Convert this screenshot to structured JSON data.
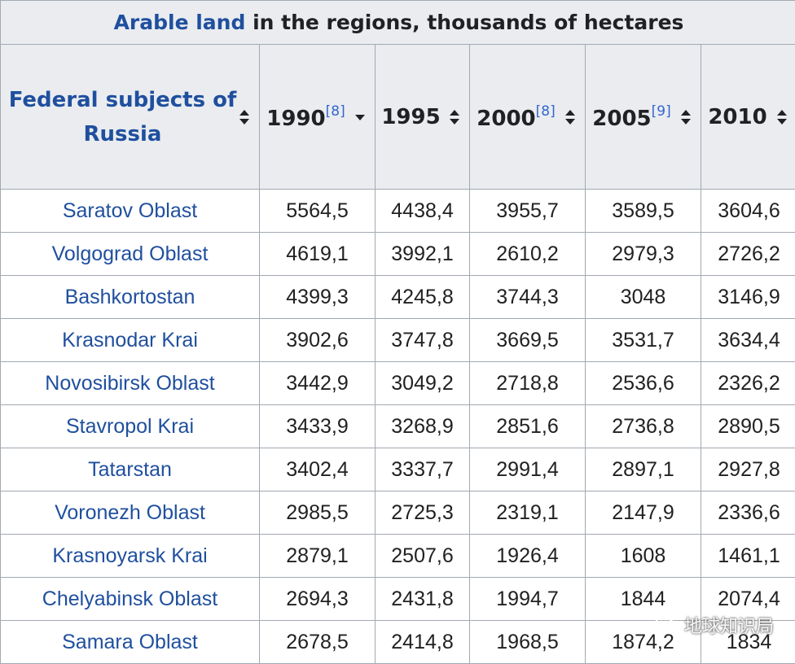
{
  "caption": {
    "link_text": "Arable land",
    "rest_text": " in the regions, thousands of hectares"
  },
  "columns": [
    {
      "label": "Federal subjects of Russia",
      "ref": "",
      "sort": "both"
    },
    {
      "label": "1990",
      "ref": "[8]",
      "sort": "down"
    },
    {
      "label": "1995",
      "ref": "",
      "sort": "both"
    },
    {
      "label": "2000",
      "ref": "[8]",
      "sort": "both"
    },
    {
      "label": "2005",
      "ref": "[9]",
      "sort": "both"
    },
    {
      "label": "2010",
      "ref": "",
      "sort": "both"
    }
  ],
  "rows": [
    {
      "region": "Saratov Oblast",
      "values": [
        "5564,5",
        "4438,4",
        "3955,7",
        "3589,5",
        "3604,6"
      ]
    },
    {
      "region": "Volgograd Oblast",
      "values": [
        "4619,1",
        "3992,1",
        "2610,2",
        "2979,3",
        "2726,2"
      ]
    },
    {
      "region": "Bashkortostan",
      "values": [
        "4399,3",
        "4245,8",
        "3744,3",
        "3048",
        "3146,9"
      ]
    },
    {
      "region": "Krasnodar Krai",
      "values": [
        "3902,6",
        "3747,8",
        "3669,5",
        "3531,7",
        "3634,4"
      ]
    },
    {
      "region": "Novosibirsk Oblast",
      "values": [
        "3442,9",
        "3049,2",
        "2718,8",
        "2536,6",
        "2326,2"
      ]
    },
    {
      "region": "Stavropol Krai",
      "values": [
        "3433,9",
        "3268,9",
        "2851,6",
        "2736,8",
        "2890,5"
      ]
    },
    {
      "region": "Tatarstan",
      "values": [
        "3402,4",
        "3337,7",
        "2991,4",
        "2897,1",
        "2927,8"
      ]
    },
    {
      "region": "Voronezh Oblast",
      "values": [
        "2985,5",
        "2725,3",
        "2319,1",
        "2147,9",
        "2336,6"
      ]
    },
    {
      "region": "Krasnoyarsk Krai",
      "values": [
        "2879,1",
        "2507,6",
        "1926,4",
        "1608",
        "1461,1"
      ]
    },
    {
      "region": "Chelyabinsk Oblast",
      "values": [
        "2694,3",
        "2431,8",
        "1994,7",
        "1844",
        "2074,4"
      ]
    },
    {
      "region": "Samara Oblast",
      "values": [
        "2678,5",
        "2414,8",
        "1968,5",
        "1874,2",
        "1834"
      ]
    }
  ],
  "watermark": {
    "text": "地球知识局",
    "icon": "wechat-icon"
  },
  "colors": {
    "link": "#1f4f9e",
    "header_bg": "#eaecf0",
    "border": "#a2a9b1"
  }
}
